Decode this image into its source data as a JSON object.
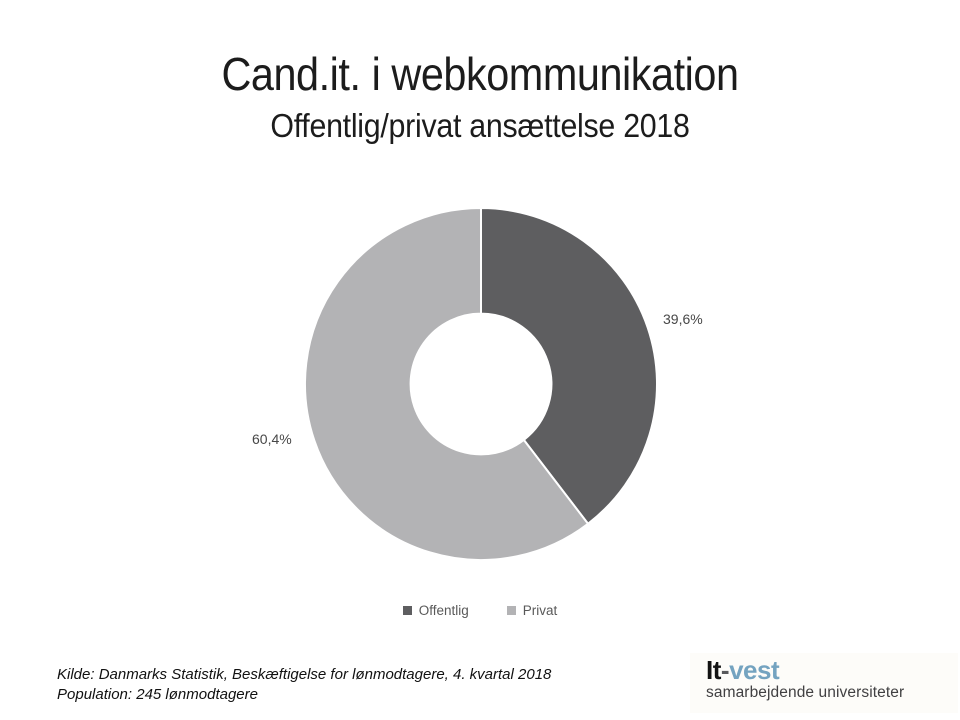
{
  "slide": {
    "title": "Cand.it. i webkommunikation",
    "subtitle": "Offentlig/privat ansættelse 2018"
  },
  "chart_data": {
    "type": "pie",
    "subtype": "donut",
    "title": "Cand.it. i webkommunikation",
    "subtitle": "Offentlig/privat ansættelse 2018",
    "categories": [
      "Offentlig",
      "Privat"
    ],
    "values": [
      39.6,
      60.4
    ],
    "series": [
      {
        "name": "Offentlig",
        "value": 39.6,
        "label": "39,6%",
        "color": "#5e5e60"
      },
      {
        "name": "Privat",
        "value": 60.4,
        "label": "60,4%",
        "color": "#b3b3b5"
      }
    ],
    "unit": "%",
    "start_angle_deg": 0,
    "direction": "clockwise",
    "hole_ratio": 0.4,
    "slice_border_color": "#ffffff",
    "legend_position": "bottom",
    "label_position": "outside"
  },
  "footer": {
    "source_line1": "Kilde: Danmarks Statistik, Beskæftigelse for lønmodtagere, 4. kvartal 2018",
    "source_line2": "Population: 245 lønmodtagere"
  },
  "logo": {
    "part1": "It",
    "hyphen": "-",
    "part2": "vest",
    "tagline": "samarbejdende universiteter",
    "brand_blue": "#74a3c0"
  }
}
